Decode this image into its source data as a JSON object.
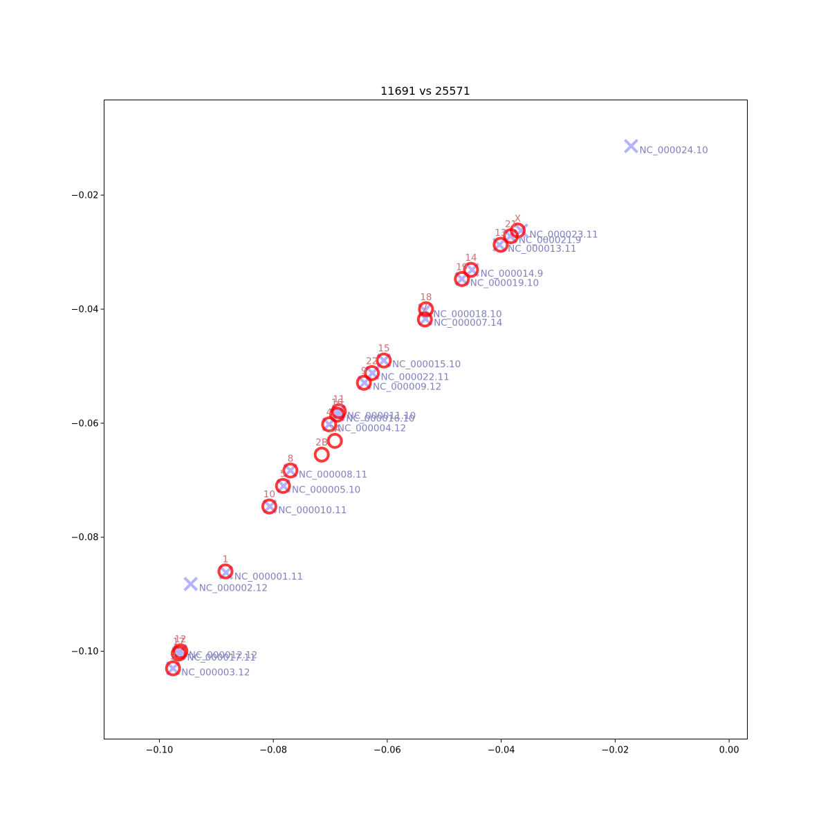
{
  "chart_data": {
    "type": "scatter",
    "title": "11691 vs 25571",
    "xlabel": "",
    "ylabel": "",
    "xlim": [
      -0.1097,
      0.0032
    ],
    "ylim": [
      -0.1154,
      -0.0033
    ],
    "xticks": [
      -0.1,
      -0.08,
      -0.06,
      -0.04,
      -0.02,
      0.0
    ],
    "xtick_labels": [
      "−0.10",
      "−0.08",
      "−0.06",
      "−0.04",
      "−0.02",
      "0.00"
    ],
    "yticks": [
      -0.02,
      -0.04,
      -0.06,
      -0.08,
      -0.1
    ],
    "ytick_labels": [
      "−0.02",
      "−0.04",
      "−0.06",
      "−0.08",
      "−0.10"
    ],
    "grid": false,
    "legend": "none",
    "series": [
      {
        "marker": "x",
        "color": "#b3b3ff",
        "label_color": "#8080c0",
        "points": [
          {
            "x": -0.0172,
            "y": -0.0114,
            "label": "NC_000024.10"
          },
          {
            "x": -0.0365,
            "y": -0.0262,
            "label": "NC_000023.11"
          },
          {
            "x": -0.0384,
            "y": -0.0272,
            "label": "NC_000021.9"
          },
          {
            "x": -0.0403,
            "y": -0.0287,
            "label": "NC_000013.11"
          },
          {
            "x": -0.0451,
            "y": -0.0331,
            "label": "NC_000014.9"
          },
          {
            "x": -0.0469,
            "y": -0.0347,
            "label": "NC_000019.10"
          },
          {
            "x": -0.0534,
            "y": -0.0402,
            "label": "NC_000018.10"
          },
          {
            "x": -0.0533,
            "y": -0.0417,
            "label": "NC_000007.14"
          },
          {
            "x": -0.0606,
            "y": -0.049,
            "label": "NC_000015.10"
          },
          {
            "x": -0.0626,
            "y": -0.0512,
            "label": "NC_000022.11"
          },
          {
            "x": -0.064,
            "y": -0.0529,
            "label": "NC_000009.12"
          },
          {
            "x": -0.0685,
            "y": -0.058,
            "label": "NC_000011.10"
          },
          {
            "x": -0.0687,
            "y": -0.0585,
            "label": "NC_000016.10"
          },
          {
            "x": -0.0702,
            "y": -0.0602,
            "label": "NC_000004.12"
          },
          {
            "x": -0.077,
            "y": -0.0683,
            "label": "NC_000008.11"
          },
          {
            "x": -0.0782,
            "y": -0.071,
            "label": "NC_000005.10"
          },
          {
            "x": -0.0806,
            "y": -0.0746,
            "label": "NC_000010.11"
          },
          {
            "x": -0.0883,
            "y": -0.0862,
            "label": "NC_000001.11"
          },
          {
            "x": -0.0945,
            "y": -0.0882,
            "label": "NC_000002.12"
          },
          {
            "x": -0.0963,
            "y": -0.1,
            "label": "NC_000012.12"
          },
          {
            "x": -0.0966,
            "y": -0.1004,
            "label": "NC_000017.11"
          },
          {
            "x": -0.0976,
            "y": -0.103,
            "label": "NC_000003.12"
          }
        ]
      },
      {
        "marker": "o",
        "color": "#ff0000",
        "label_color": "#c87070",
        "points": [
          {
            "x": -0.0371,
            "y": -0.0262,
            "label": "X"
          },
          {
            "x": -0.0383,
            "y": -0.0272,
            "label": "21"
          },
          {
            "x": -0.0401,
            "y": -0.0287,
            "label": "13"
          },
          {
            "x": -0.0453,
            "y": -0.0331,
            "label": "14"
          },
          {
            "x": -0.0469,
            "y": -0.0347,
            "label": "19"
          },
          {
            "x": -0.0532,
            "y": -0.04,
            "label": "18"
          },
          {
            "x": -0.0534,
            "y": -0.0418,
            "label": "7"
          },
          {
            "x": -0.0606,
            "y": -0.049,
            "label": "15"
          },
          {
            "x": -0.0627,
            "y": -0.0512,
            "label": "22"
          },
          {
            "x": -0.0641,
            "y": -0.0529,
            "label": "9"
          },
          {
            "x": -0.0685,
            "y": -0.0579,
            "label": "11"
          },
          {
            "x": -0.0688,
            "y": -0.0585,
            "label": "16"
          },
          {
            "x": -0.0702,
            "y": -0.0602,
            "label": "4"
          },
          {
            "x": -0.0692,
            "y": -0.0631,
            "label": "2A"
          },
          {
            "x": -0.0715,
            "y": -0.0655,
            "label": "2B"
          },
          {
            "x": -0.077,
            "y": -0.0683,
            "label": "8"
          },
          {
            "x": -0.0783,
            "y": -0.071,
            "label": "5"
          },
          {
            "x": -0.0807,
            "y": -0.0746,
            "label": "10"
          },
          {
            "x": -0.0884,
            "y": -0.086,
            "label": "1"
          },
          {
            "x": -0.0963,
            "y": -0.1,
            "label": "12"
          },
          {
            "x": -0.0966,
            "y": -0.1004,
            "label": "17"
          },
          {
            "x": -0.0976,
            "y": -0.103,
            "label": "3"
          }
        ]
      }
    ]
  }
}
